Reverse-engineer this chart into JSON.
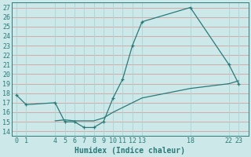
{
  "xlabel": "Humidex (Indice chaleur)",
  "bg_color": "#cce8e8",
  "grid_color_h": "#d4a0a0",
  "grid_color_v": "#aad4d4",
  "line_color": "#2a7a7a",
  "xticks": [
    0,
    1,
    4,
    5,
    6,
    7,
    8,
    9,
    10,
    11,
    12,
    13,
    18,
    22,
    23
  ],
  "yticks": [
    14,
    15,
    16,
    17,
    18,
    19,
    20,
    21,
    22,
    23,
    24,
    25,
    26,
    27
  ],
  "ylim": [
    13.5,
    27.5
  ],
  "xlim": [
    -0.5,
    24.0
  ],
  "line1_x": [
    0,
    1,
    4,
    5,
    6,
    7,
    8,
    9,
    10,
    11,
    12,
    13,
    18,
    22,
    23
  ],
  "line1_y": [
    17.8,
    16.8,
    17.0,
    15.0,
    15.0,
    14.4,
    14.4,
    15.0,
    17.5,
    19.5,
    23.0,
    25.5,
    27.0,
    21.0,
    19.0
  ],
  "line2_x": [
    4,
    5,
    6,
    7,
    8,
    9,
    10,
    11,
    12,
    13,
    18,
    22,
    23
  ],
  "line2_y": [
    15.1,
    15.2,
    15.1,
    15.1,
    15.1,
    15.4,
    16.0,
    16.5,
    17.0,
    17.5,
    18.5,
    19.0,
    19.3
  ],
  "tick_fontsize": 6.0,
  "xlabel_fontsize": 7.0
}
